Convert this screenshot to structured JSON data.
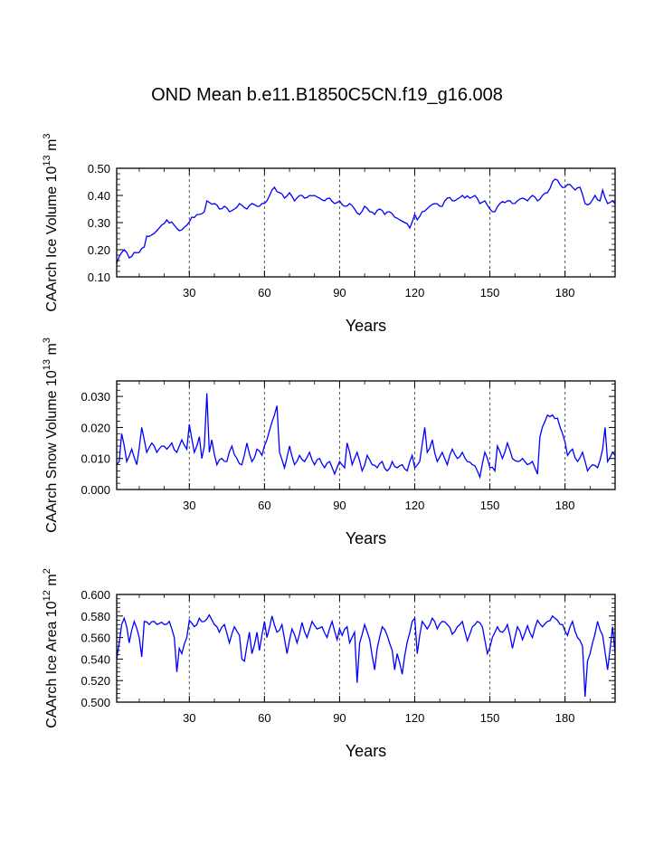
{
  "title": "OND Mean b.e11.B1850C5CN.f19_g16.008",
  "series_color": "#0000ff",
  "chart_data": [
    {
      "type": "line",
      "ylabel": "CAArch Ice Volume 10^13 m^3",
      "ylabel_parts": {
        "prefix": "CAArch Ice Volume 10",
        "exp": "13",
        "unit": " m",
        "unit_exp": "3"
      },
      "xlabel": "Years",
      "xlim": [
        1,
        200
      ],
      "ylim": [
        0.1,
        0.5
      ],
      "yticks": [
        0.1,
        0.2,
        0.3,
        0.4,
        0.5
      ],
      "ytick_labels": [
        "0.10",
        "0.20",
        "0.30",
        "0.40",
        "0.50"
      ],
      "xticks": [
        30,
        60,
        90,
        120,
        150,
        180
      ],
      "xtick_labels": [
        "30",
        "60",
        "90",
        "120",
        "150",
        "180"
      ],
      "grid_x": [
        30,
        60,
        90,
        120,
        150,
        180
      ],
      "keypoints": [
        [
          1,
          0.15
        ],
        [
          3,
          0.19
        ],
        [
          4,
          0.2
        ],
        [
          6,
          0.17
        ],
        [
          8,
          0.19
        ],
        [
          10,
          0.19
        ],
        [
          12,
          0.21
        ],
        [
          13,
          0.25
        ],
        [
          16,
          0.26
        ],
        [
          18,
          0.28
        ],
        [
          21,
          0.31
        ],
        [
          24,
          0.29
        ],
        [
          26,
          0.27
        ],
        [
          29,
          0.29
        ],
        [
          31,
          0.32
        ],
        [
          34,
          0.33
        ],
        [
          36,
          0.34
        ],
        [
          37,
          0.38
        ],
        [
          40,
          0.37
        ],
        [
          42,
          0.35
        ],
        [
          44,
          0.36
        ],
        [
          46,
          0.34
        ],
        [
          48,
          0.35
        ],
        [
          50,
          0.37
        ],
        [
          53,
          0.35
        ],
        [
          55,
          0.37
        ],
        [
          57,
          0.36
        ],
        [
          59,
          0.37
        ],
        [
          61,
          0.38
        ],
        [
          63,
          0.42
        ],
        [
          64,
          0.43
        ],
        [
          66,
          0.41
        ],
        [
          68,
          0.39
        ],
        [
          70,
          0.41
        ],
        [
          72,
          0.38
        ],
        [
          74,
          0.4
        ],
        [
          76,
          0.39
        ],
        [
          78,
          0.4
        ],
        [
          80,
          0.4
        ],
        [
          82,
          0.39
        ],
        [
          84,
          0.38
        ],
        [
          86,
          0.39
        ],
        [
          88,
          0.37
        ],
        [
          90,
          0.38
        ],
        [
          92,
          0.36
        ],
        [
          94,
          0.37
        ],
        [
          96,
          0.35
        ],
        [
          98,
          0.33
        ],
        [
          100,
          0.36
        ],
        [
          102,
          0.34
        ],
        [
          104,
          0.33
        ],
        [
          106,
          0.35
        ],
        [
          108,
          0.33
        ],
        [
          110,
          0.34
        ],
        [
          112,
          0.32
        ],
        [
          114,
          0.31
        ],
        [
          116,
          0.3
        ],
        [
          118,
          0.28
        ],
        [
          120,
          0.33
        ],
        [
          121,
          0.31
        ],
        [
          123,
          0.34
        ],
        [
          126,
          0.36
        ],
        [
          128,
          0.37
        ],
        [
          131,
          0.36
        ],
        [
          133,
          0.39
        ],
        [
          136,
          0.38
        ],
        [
          139,
          0.4
        ],
        [
          142,
          0.39
        ],
        [
          144,
          0.4
        ],
        [
          146,
          0.37
        ],
        [
          148,
          0.38
        ],
        [
          150,
          0.35
        ],
        [
          152,
          0.34
        ],
        [
          154,
          0.37
        ],
        [
          157,
          0.38
        ],
        [
          159,
          0.37
        ],
        [
          161,
          0.38
        ],
        [
          163,
          0.39
        ],
        [
          165,
          0.38
        ],
        [
          167,
          0.4
        ],
        [
          169,
          0.38
        ],
        [
          171,
          0.4
        ],
        [
          173,
          0.41
        ],
        [
          175,
          0.45
        ],
        [
          176,
          0.46
        ],
        [
          178,
          0.44
        ],
        [
          180,
          0.43
        ],
        [
          182,
          0.44
        ],
        [
          184,
          0.42
        ],
        [
          186,
          0.43
        ],
        [
          188,
          0.37
        ],
        [
          190,
          0.37
        ],
        [
          192,
          0.4
        ],
        [
          194,
          0.38
        ],
        [
          195,
          0.42
        ],
        [
          197,
          0.37
        ],
        [
          199,
          0.38
        ],
        [
          200,
          0.37
        ]
      ],
      "noise": 0.006
    },
    {
      "type": "line",
      "ylabel": "CAArch Snow Volume 10^13 m^3",
      "ylabel_parts": {
        "prefix": "CAArch Snow Volume 10",
        "exp": "13",
        "unit": " m",
        "unit_exp": "3"
      },
      "xlabel": "Years",
      "xlim": [
        1,
        200
      ],
      "ylim": [
        0.0,
        0.035
      ],
      "yticks": [
        0.0,
        0.01,
        0.02,
        0.03
      ],
      "ytick_labels": [
        "0.000",
        "0.010",
        "0.020",
        "0.030"
      ],
      "xticks": [
        30,
        60,
        90,
        120,
        150,
        180
      ],
      "xtick_labels": [
        "30",
        "60",
        "90",
        "120",
        "150",
        "180"
      ],
      "grid_x": [
        30,
        60,
        90,
        120,
        150,
        180
      ],
      "keypoints": [
        [
          1,
          0.008
        ],
        [
          2,
          0.009
        ],
        [
          3,
          0.018
        ],
        [
          5,
          0.009
        ],
        [
          7,
          0.013
        ],
        [
          9,
          0.008
        ],
        [
          11,
          0.02
        ],
        [
          13,
          0.012
        ],
        [
          15,
          0.015
        ],
        [
          17,
          0.012
        ],
        [
          19,
          0.014
        ],
        [
          21,
          0.013
        ],
        [
          23,
          0.015
        ],
        [
          25,
          0.012
        ],
        [
          27,
          0.016
        ],
        [
          29,
          0.013
        ],
        [
          30,
          0.021
        ],
        [
          32,
          0.012
        ],
        [
          34,
          0.017
        ],
        [
          35,
          0.01
        ],
        [
          36,
          0.014
        ],
        [
          37,
          0.031
        ],
        [
          38,
          0.012
        ],
        [
          39,
          0.016
        ],
        [
          41,
          0.008
        ],
        [
          43,
          0.01
        ],
        [
          45,
          0.009
        ],
        [
          47,
          0.014
        ],
        [
          49,
          0.01
        ],
        [
          51,
          0.008
        ],
        [
          53,
          0.015
        ],
        [
          55,
          0.009
        ],
        [
          57,
          0.013
        ],
        [
          59,
          0.011
        ],
        [
          61,
          0.016
        ],
        [
          62,
          0.019
        ],
        [
          64,
          0.024
        ],
        [
          65,
          0.027
        ],
        [
          66,
          0.012
        ],
        [
          68,
          0.007
        ],
        [
          70,
          0.014
        ],
        [
          72,
          0.008
        ],
        [
          74,
          0.011
        ],
        [
          76,
          0.009
        ],
        [
          78,
          0.012
        ],
        [
          80,
          0.008
        ],
        [
          82,
          0.01
        ],
        [
          84,
          0.007
        ],
        [
          86,
          0.009
        ],
        [
          88,
          0.005
        ],
        [
          90,
          0.009
        ],
        [
          92,
          0.007
        ],
        [
          93,
          0.015
        ],
        [
          95,
          0.008
        ],
        [
          97,
          0.012
        ],
        [
          99,
          0.006
        ],
        [
          101,
          0.011
        ],
        [
          103,
          0.008
        ],
        [
          105,
          0.007
        ],
        [
          107,
          0.009
        ],
        [
          109,
          0.006
        ],
        [
          111,
          0.009
        ],
        [
          113,
          0.007
        ],
        [
          115,
          0.008
        ],
        [
          117,
          0.006
        ],
        [
          119,
          0.011
        ],
        [
          120,
          0.007
        ],
        [
          122,
          0.009
        ],
        [
          124,
          0.02
        ],
        [
          125,
          0.012
        ],
        [
          127,
          0.016
        ],
        [
          129,
          0.009
        ],
        [
          131,
          0.012
        ],
        [
          133,
          0.008
        ],
        [
          135,
          0.013
        ],
        [
          137,
          0.01
        ],
        [
          139,
          0.012
        ],
        [
          141,
          0.009
        ],
        [
          143,
          0.008
        ],
        [
          145,
          0.006
        ],
        [
          146,
          0.004
        ],
        [
          148,
          0.012
        ],
        [
          150,
          0.007
        ],
        [
          152,
          0.006
        ],
        [
          153,
          0.014
        ],
        [
          155,
          0.01
        ],
        [
          157,
          0.015
        ],
        [
          159,
          0.01
        ],
        [
          161,
          0.009
        ],
        [
          163,
          0.01
        ],
        [
          165,
          0.008
        ],
        [
          167,
          0.009
        ],
        [
          169,
          0.005
        ],
        [
          170,
          0.017
        ],
        [
          172,
          0.022
        ],
        [
          173,
          0.024
        ],
        [
          175,
          0.024
        ],
        [
          177,
          0.023
        ],
        [
          179,
          0.018
        ],
        [
          181,
          0.011
        ],
        [
          183,
          0.013
        ],
        [
          185,
          0.009
        ],
        [
          187,
          0.012
        ],
        [
          189,
          0.006
        ],
        [
          191,
          0.008
        ],
        [
          193,
          0.007
        ],
        [
          195,
          0.013
        ],
        [
          196,
          0.02
        ],
        [
          197,
          0.009
        ],
        [
          199,
          0.012
        ],
        [
          200,
          0.011
        ]
      ],
      "noise": 0.0008
    },
    {
      "type": "line",
      "ylabel": "CAArch Ice Area 10^12 m^2",
      "ylabel_parts": {
        "prefix": "CAArch Ice Area 10",
        "exp": "12",
        "unit": " m",
        "unit_exp": "2"
      },
      "xlabel": "Years",
      "xlim": [
        1,
        200
      ],
      "ylim": [
        0.5,
        0.6
      ],
      "yticks": [
        0.5,
        0.52,
        0.54,
        0.56,
        0.58,
        0.6
      ],
      "ytick_labels": [
        "0.500",
        "0.520",
        "0.540",
        "0.560",
        "0.580",
        "0.600"
      ],
      "xticks": [
        30,
        60,
        90,
        120,
        150,
        180
      ],
      "xtick_labels": [
        "30",
        "60",
        "90",
        "120",
        "150",
        "180"
      ],
      "grid_x": [
        30,
        60,
        90,
        120,
        150,
        180
      ],
      "keypoints": [
        [
          1,
          0.54
        ],
        [
          2,
          0.555
        ],
        [
          3,
          0.572
        ],
        [
          4,
          0.578
        ],
        [
          5,
          0.57
        ],
        [
          6,
          0.555
        ],
        [
          8,
          0.575
        ],
        [
          10,
          0.56
        ],
        [
          11,
          0.542
        ],
        [
          12,
          0.575
        ],
        [
          14,
          0.572
        ],
        [
          16,
          0.575
        ],
        [
          18,
          0.573
        ],
        [
          20,
          0.572
        ],
        [
          22,
          0.575
        ],
        [
          24,
          0.56
        ],
        [
          25,
          0.528
        ],
        [
          26,
          0.55
        ],
        [
          27,
          0.545
        ],
        [
          29,
          0.56
        ],
        [
          30,
          0.576
        ],
        [
          32,
          0.57
        ],
        [
          34,
          0.578
        ],
        [
          36,
          0.575
        ],
        [
          38,
          0.581
        ],
        [
          40,
          0.572
        ],
        [
          42,
          0.565
        ],
        [
          44,
          0.572
        ],
        [
          46,
          0.555
        ],
        [
          48,
          0.57
        ],
        [
          50,
          0.562
        ],
        [
          51,
          0.54
        ],
        [
          52,
          0.538
        ],
        [
          54,
          0.565
        ],
        [
          55,
          0.545
        ],
        [
          57,
          0.565
        ],
        [
          58,
          0.548
        ],
        [
          60,
          0.575
        ],
        [
          61,
          0.56
        ],
        [
          63,
          0.58
        ],
        [
          65,
          0.565
        ],
        [
          67,
          0.572
        ],
        [
          69,
          0.545
        ],
        [
          71,
          0.568
        ],
        [
          73,
          0.555
        ],
        [
          75,
          0.574
        ],
        [
          77,
          0.56
        ],
        [
          79,
          0.575
        ],
        [
          81,
          0.568
        ],
        [
          83,
          0.57
        ],
        [
          85,
          0.56
        ],
        [
          87,
          0.575
        ],
        [
          89,
          0.558
        ],
        [
          90,
          0.568
        ],
        [
          91,
          0.562
        ],
        [
          93,
          0.57
        ],
        [
          94,
          0.555
        ],
        [
          96,
          0.565
        ],
        [
          97,
          0.518
        ],
        [
          98,
          0.555
        ],
        [
          100,
          0.572
        ],
        [
          102,
          0.558
        ],
        [
          104,
          0.53
        ],
        [
          105,
          0.55
        ],
        [
          107,
          0.57
        ],
        [
          109,
          0.562
        ],
        [
          111,
          0.548
        ],
        [
          112,
          0.53
        ],
        [
          113,
          0.545
        ],
        [
          115,
          0.526
        ],
        [
          117,
          0.556
        ],
        [
          119,
          0.575
        ],
        [
          120,
          0.578
        ],
        [
          121,
          0.545
        ],
        [
          123,
          0.575
        ],
        [
          125,
          0.568
        ],
        [
          127,
          0.578
        ],
        [
          129,
          0.568
        ],
        [
          131,
          0.575
        ],
        [
          133,
          0.572
        ],
        [
          135,
          0.563
        ],
        [
          137,
          0.57
        ],
        [
          139,
          0.575
        ],
        [
          141,
          0.557
        ],
        [
          143,
          0.57
        ],
        [
          145,
          0.575
        ],
        [
          147,
          0.57
        ],
        [
          149,
          0.545
        ],
        [
          151,
          0.56
        ],
        [
          153,
          0.57
        ],
        [
          155,
          0.565
        ],
        [
          157,
          0.572
        ],
        [
          159,
          0.55
        ],
        [
          161,
          0.57
        ],
        [
          163,
          0.558
        ],
        [
          165,
          0.571
        ],
        [
          167,
          0.56
        ],
        [
          169,
          0.576
        ],
        [
          171,
          0.57
        ],
        [
          173,
          0.575
        ],
        [
          175,
          0.58
        ],
        [
          177,
          0.576
        ],
        [
          179,
          0.572
        ],
        [
          181,
          0.562
        ],
        [
          183,
          0.575
        ],
        [
          185,
          0.56
        ],
        [
          187,
          0.552
        ],
        [
          188,
          0.505
        ],
        [
          189,
          0.538
        ],
        [
          191,
          0.555
        ],
        [
          193,
          0.575
        ],
        [
          195,
          0.562
        ],
        [
          197,
          0.53
        ],
        [
          199,
          0.57
        ],
        [
          200,
          0.545
        ]
      ],
      "noise": 0.002
    }
  ]
}
